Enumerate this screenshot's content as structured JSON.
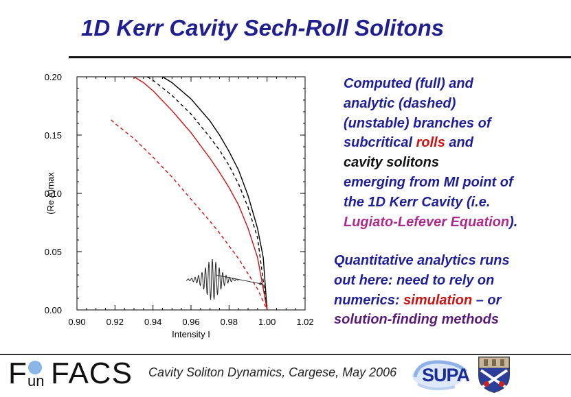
{
  "title": "1D Kerr Cavity Sech-Roll Solitons",
  "description_1": {
    "line1": "Computed (full) and",
    "line2": "analytic (dashed)",
    "line3": "(unstable) branches of",
    "line4a": "subcritical ",
    "line4_rolls": "rolls",
    "line4b": " and",
    "line5": "cavity solitons",
    "line6": "emerging from MI point of",
    "line7": "the 1D Kerr Cavity (i.e.",
    "line8a": "Lugiato-Lefever Equation",
    "line8b": ")."
  },
  "description_2": {
    "line1": "Quantitative analytics runs",
    "line2": "out here: need to rely on",
    "line3a": "numerics: ",
    "line3_sim": "simulation",
    "line3b": " – or",
    "line4": "solution-finding methods"
  },
  "footer": {
    "text": "Cavity Soliton Dynamics, Cargese, May 2006",
    "logo_f": "F",
    "logo_un": "un",
    "logo_facs": "FACS",
    "supa": "SUPA"
  },
  "colors": {
    "title": "#1f1f8f",
    "text_blue": "#1e1e9a",
    "series_red": "#cc1111",
    "series_black": "#000000"
  },
  "chart_data": {
    "type": "line",
    "xlabel": "Intensity I",
    "ylabel": "(Re A)max",
    "xlim": [
      0.9,
      1.02
    ],
    "ylim": [
      0.0,
      0.2
    ],
    "x_ticks": [
      "0.90",
      "0.92",
      "0.94",
      "0.96",
      "0.98",
      "1.00",
      "1.02"
    ],
    "y_ticks": [
      "0.00",
      "0.05",
      "0.10",
      "0.15",
      "0.20"
    ],
    "grid": false,
    "series": [
      {
        "color": "#000000",
        "style": "solid",
        "points": [
          [
            0.945,
            0.2
          ],
          [
            0.95,
            0.195
          ],
          [
            0.96,
            0.181
          ],
          [
            0.97,
            0.162
          ],
          [
            0.975,
            0.15
          ],
          [
            0.98,
            0.136
          ],
          [
            0.985,
            0.12
          ],
          [
            0.99,
            0.098
          ],
          [
            0.995,
            0.07
          ],
          [
            0.998,
            0.045
          ],
          [
            1.0,
            0.0
          ]
        ]
      },
      {
        "color": "#000000",
        "style": "dashed",
        "points": [
          [
            0.937,
            0.2
          ],
          [
            0.94,
            0.197
          ],
          [
            0.95,
            0.184
          ],
          [
            0.96,
            0.168
          ],
          [
            0.97,
            0.148
          ],
          [
            0.975,
            0.137
          ],
          [
            0.98,
            0.124
          ],
          [
            0.985,
            0.108
          ],
          [
            0.99,
            0.088
          ],
          [
            0.995,
            0.062
          ],
          [
            1.0,
            0.0
          ]
        ]
      },
      {
        "color": "#cc1111",
        "style": "solid",
        "points": [
          [
            0.93,
            0.2
          ],
          [
            0.935,
            0.195
          ],
          [
            0.94,
            0.188
          ],
          [
            0.95,
            0.171
          ],
          [
            0.96,
            0.152
          ],
          [
            0.97,
            0.13
          ],
          [
            0.975,
            0.118
          ],
          [
            0.98,
            0.105
          ],
          [
            0.985,
            0.09
          ],
          [
            0.99,
            0.07
          ],
          [
            0.995,
            0.045
          ],
          [
            1.0,
            0.0
          ]
        ]
      },
      {
        "color": "#cc1111",
        "style": "dashed",
        "points": [
          [
            0.918,
            0.163
          ],
          [
            0.92,
            0.16
          ],
          [
            0.93,
            0.147
          ],
          [
            0.94,
            0.131
          ],
          [
            0.95,
            0.114
          ],
          [
            0.96,
            0.095
          ],
          [
            0.97,
            0.076
          ],
          [
            0.975,
            0.066
          ],
          [
            0.98,
            0.055
          ],
          [
            0.985,
            0.044
          ],
          [
            0.99,
            0.031
          ],
          [
            0.995,
            0.018
          ],
          [
            1.0,
            0.0
          ]
        ]
      }
    ],
    "arrow": {
      "from": [
        0.973,
        0.03
      ],
      "to": [
        0.998,
        0.022
      ]
    }
  }
}
